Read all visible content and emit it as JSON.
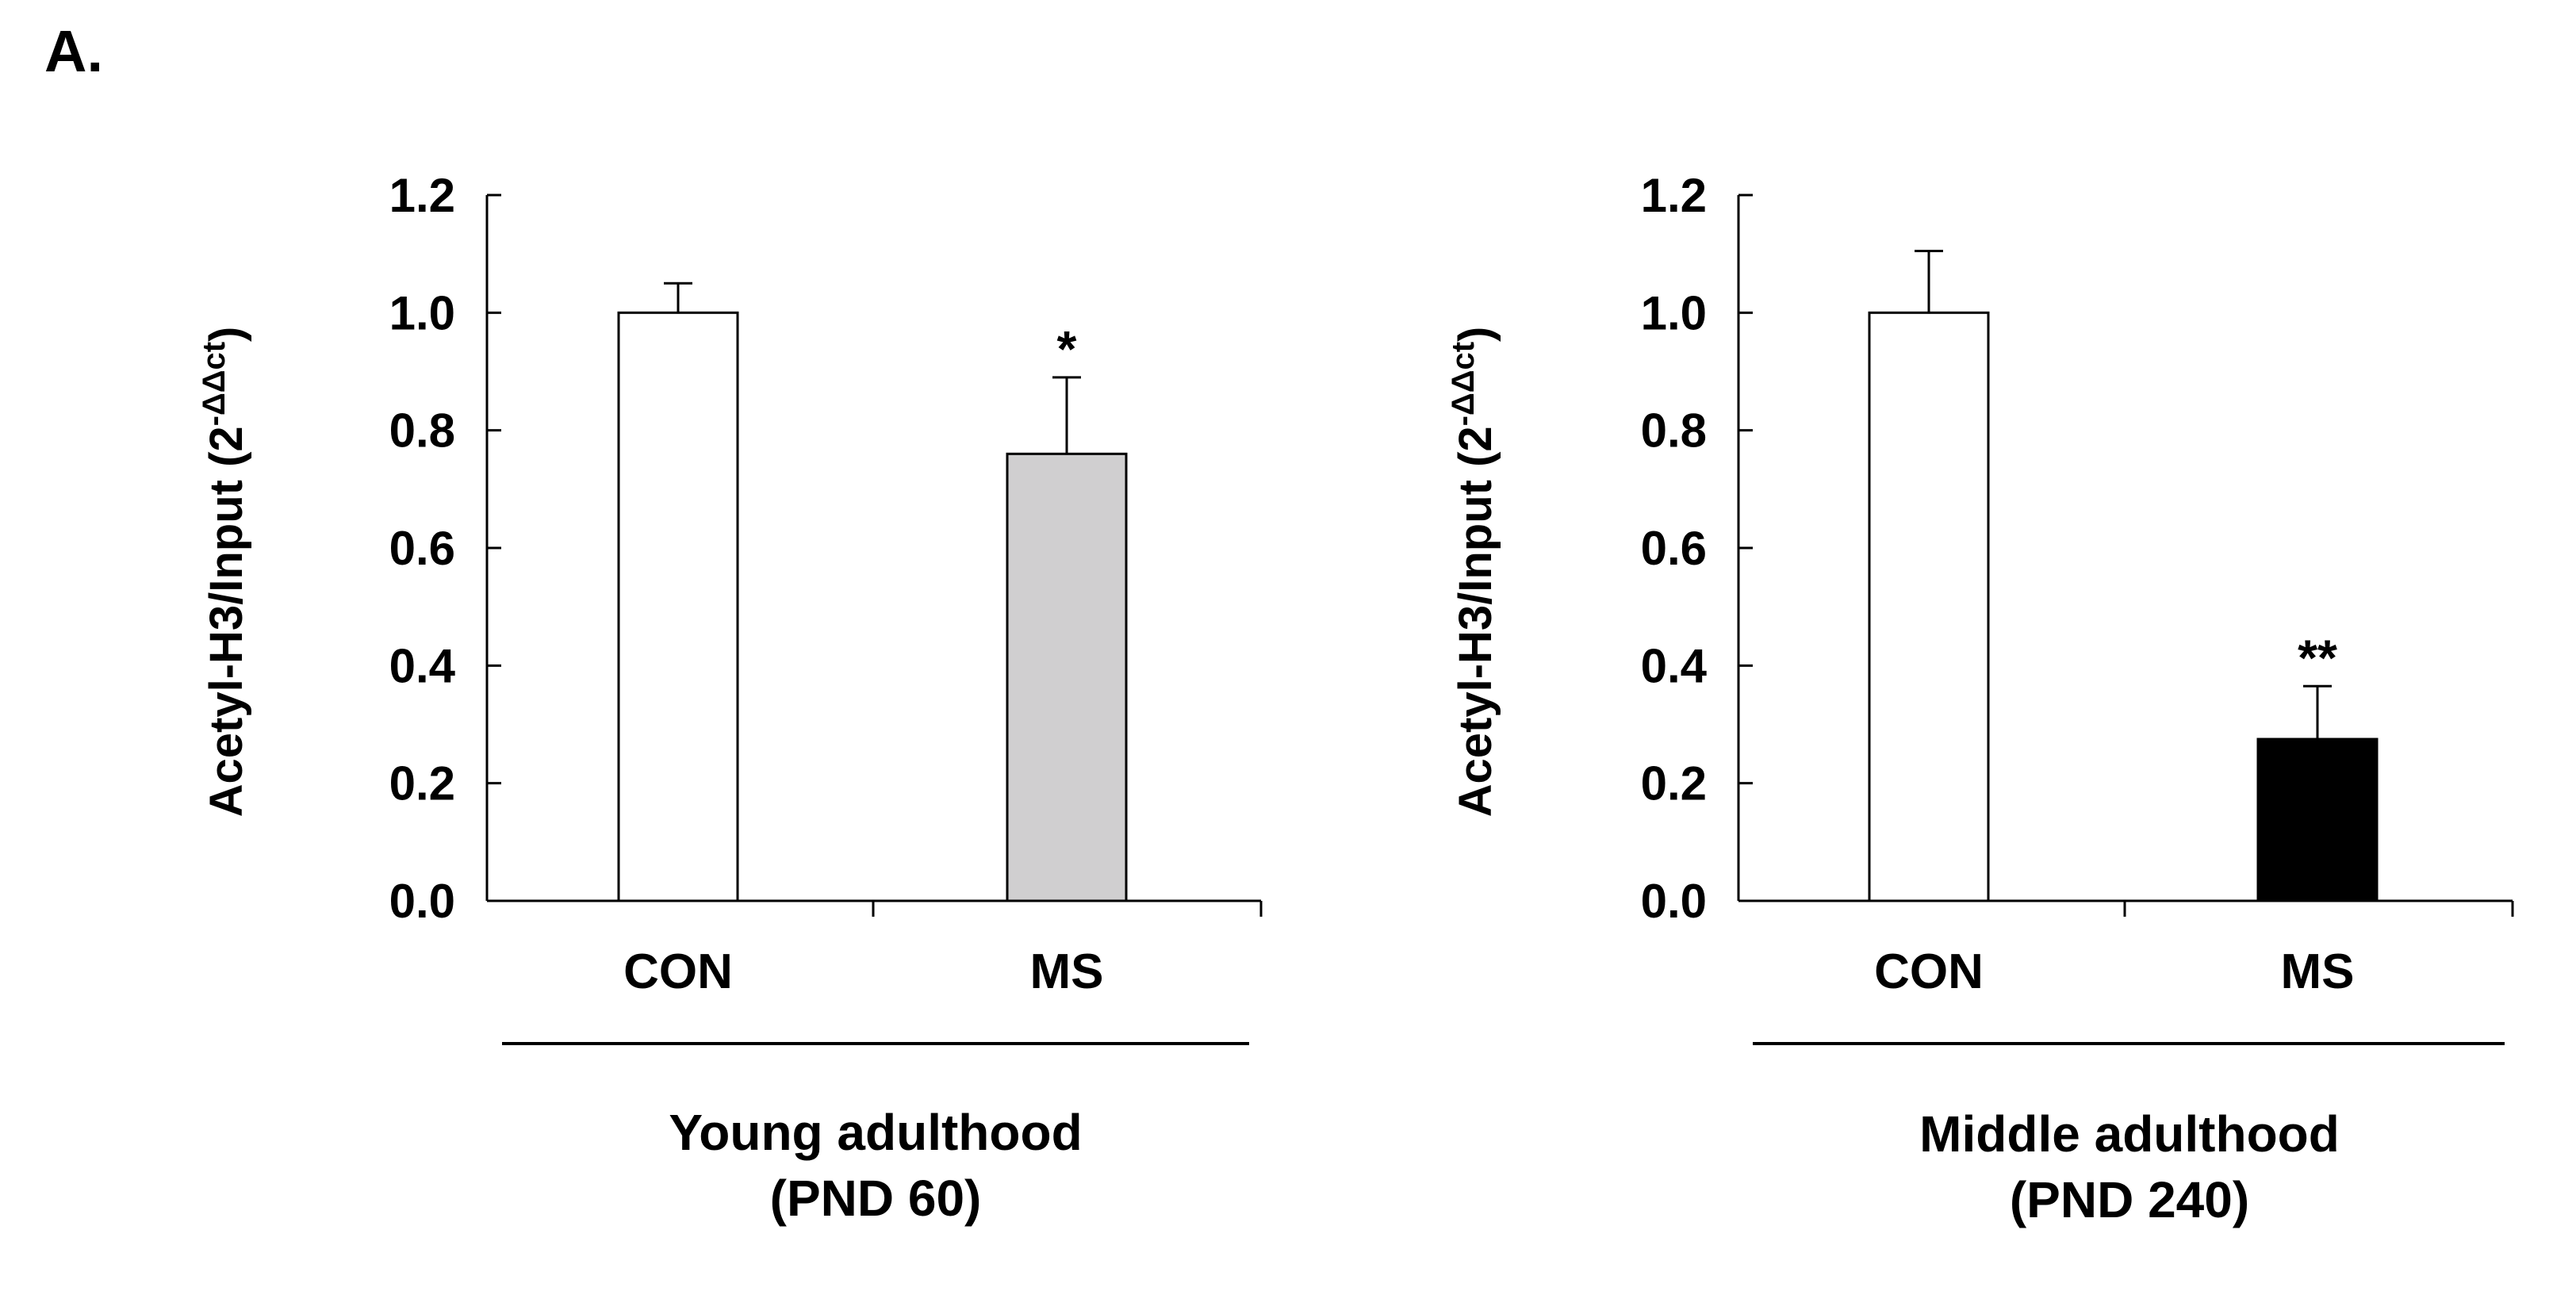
{
  "panel_label": "A.",
  "chart_data": [
    {
      "type": "bar",
      "ylabel": "Acetyl-H3/Input (2",
      "ylabel_superscript": "-ΔΔct",
      "ylabel_close": ")",
      "ylim": [
        0,
        1.2
      ],
      "yticks": [
        "0.0",
        "0.2",
        "0.4",
        "0.6",
        "0.8",
        "1.0",
        "1.2"
      ],
      "ytick_values": [
        0,
        0.2,
        0.4,
        0.6,
        0.8,
        1.0,
        1.2
      ],
      "categories": [
        "CON",
        "MS"
      ],
      "values": [
        1.0,
        0.76
      ],
      "errors": [
        0.05,
        0.13
      ],
      "colors": [
        "#ffffff",
        "#d0cfd0"
      ],
      "significance": [
        "",
        "*"
      ],
      "group_label": [
        "Young adulthood",
        "(PND 60)"
      ]
    },
    {
      "type": "bar",
      "ylabel": "Acetyl-H3/Input (2",
      "ylabel_superscript": "-ΔΔct",
      "ylabel_close": ")",
      "ylim": [
        0,
        1.2
      ],
      "yticks": [
        "0.0",
        "0.2",
        "0.4",
        "0.6",
        "0.8",
        "1.0",
        "1.2"
      ],
      "ytick_values": [
        0,
        0.2,
        0.4,
        0.6,
        0.8,
        1.0,
        1.2
      ],
      "categories": [
        "CON",
        "MS"
      ],
      "values": [
        1.0,
        0.275
      ],
      "errors": [
        0.105,
        0.09
      ],
      "colors": [
        "#ffffff",
        "#000000"
      ],
      "significance": [
        "",
        "**"
      ],
      "group_label": [
        "Middle adulthood",
        "(PND 240)"
      ]
    }
  ]
}
